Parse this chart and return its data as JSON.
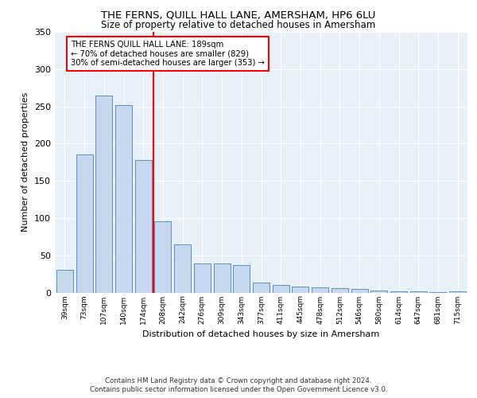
{
  "title": "THE FERNS, QUILL HALL LANE, AMERSHAM, HP6 6LU",
  "subtitle": "Size of property relative to detached houses in Amersham",
  "xlabel": "Distribution of detached houses by size in Amersham",
  "ylabel": "Number of detached properties",
  "categories": [
    "39sqm",
    "73sqm",
    "107sqm",
    "140sqm",
    "174sqm",
    "208sqm",
    "242sqm",
    "276sqm",
    "309sqm",
    "343sqm",
    "377sqm",
    "411sqm",
    "445sqm",
    "478sqm",
    "512sqm",
    "546sqm",
    "580sqm",
    "614sqm",
    "647sqm",
    "681sqm",
    "715sqm"
  ],
  "values": [
    30,
    185,
    265,
    252,
    178,
    96,
    65,
    39,
    39,
    37,
    13,
    10,
    8,
    7,
    6,
    5,
    3,
    2,
    2,
    1,
    2
  ],
  "bar_color": "#c5d8ed",
  "bar_edge_color": "#5b8dc4",
  "background_color": "#e8f0f8",
  "annotation_text": "THE FERNS QUILL HALL LANE: 189sqm\n← 70% of detached houses are smaller (829)\n30% of semi-detached houses are larger (353) →",
  "red_line_x": 4.5,
  "ylim": [
    0,
    350
  ],
  "yticks": [
    0,
    50,
    100,
    150,
    200,
    250,
    300,
    350
  ],
  "footer_line1": "Contains HM Land Registry data © Crown copyright and database right 2024.",
  "footer_line2": "Contains public sector information licensed under the Open Government Licence v3.0."
}
